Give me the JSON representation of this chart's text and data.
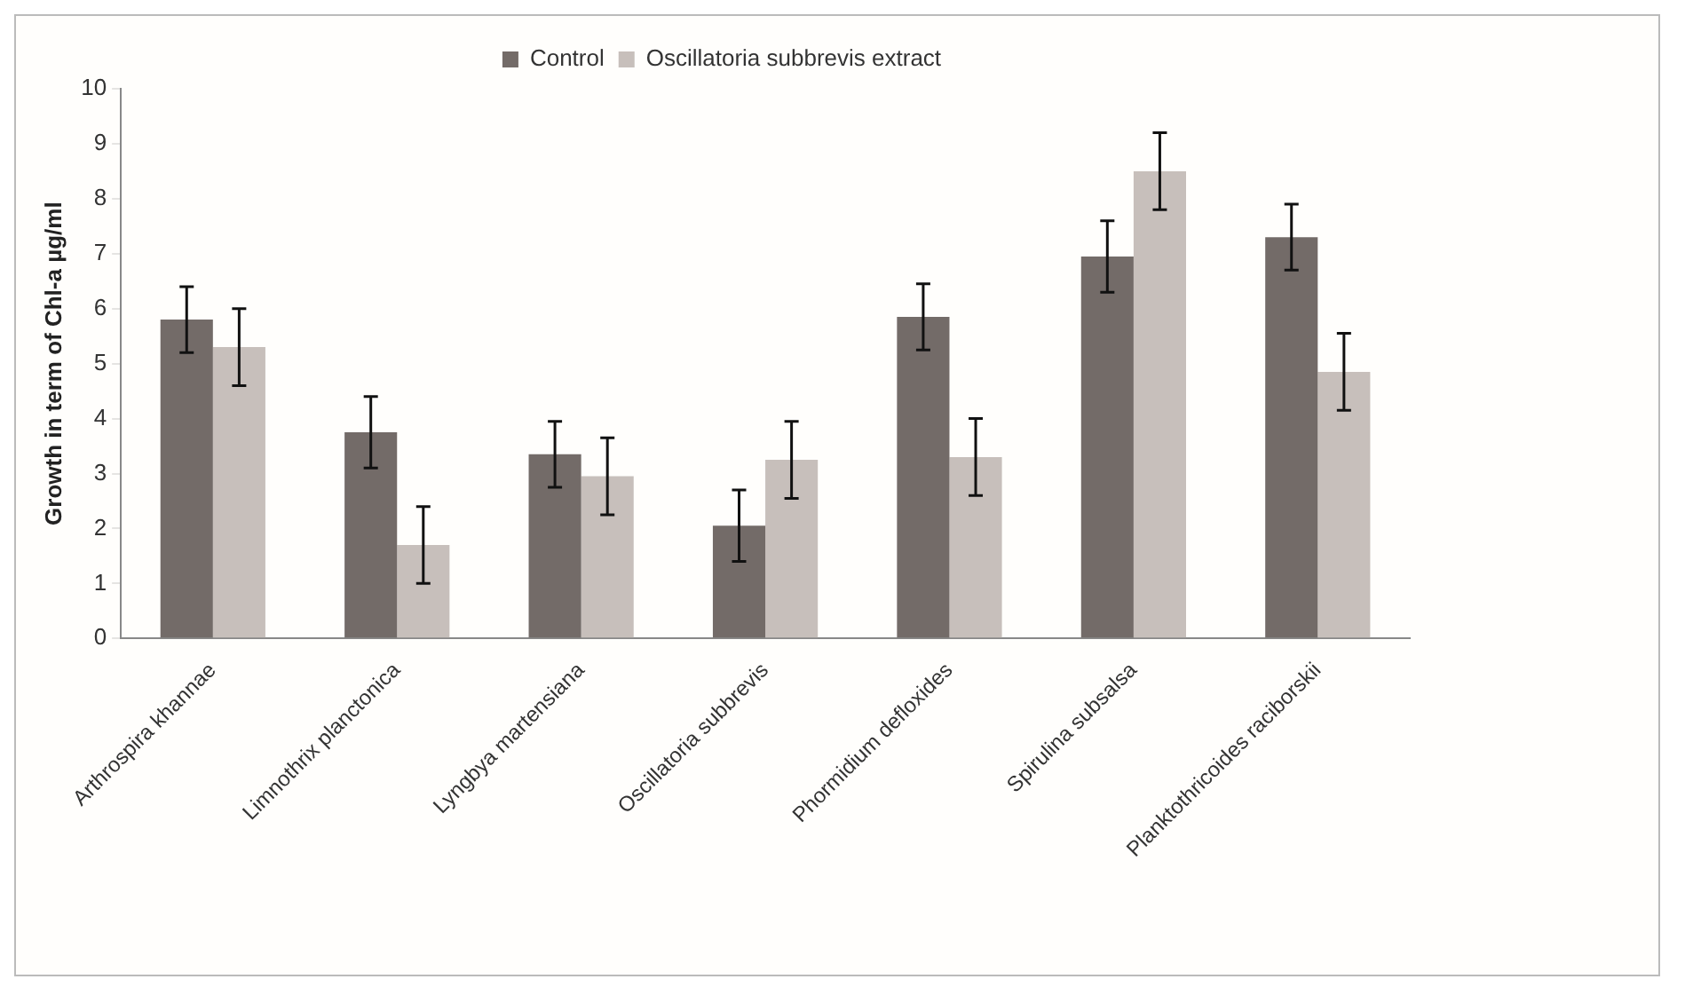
{
  "chart_data": {
    "type": "bar",
    "ylabel": "Growth in term of Chl-a µg/ml",
    "categories": [
      "Arthrospira khannae",
      "Limnothrix planctonica",
      "Lyngbya martensiana",
      "Oscillatoria subbrevis",
      "Phormidium defloxides",
      "Spirulina subsalsa",
      "Planktothricoides raciborskii"
    ],
    "series": [
      {
        "name": "Control",
        "color": "#736b68",
        "values": [
          5.8,
          3.75,
          3.35,
          2.05,
          5.85,
          6.95,
          7.3
        ],
        "errors": [
          0.6,
          0.65,
          0.6,
          0.65,
          0.6,
          0.65,
          0.6
        ]
      },
      {
        "name": "Oscillatoria subbrevis extract",
        "color": "#c7bfbb",
        "values": [
          5.3,
          1.7,
          2.95,
          3.25,
          3.3,
          8.5,
          4.85
        ],
        "errors": [
          0.7,
          0.7,
          0.7,
          0.7,
          0.7,
          0.7,
          0.7
        ]
      }
    ],
    "ylim": [
      0,
      10
    ],
    "yticks": [
      0,
      1,
      2,
      3,
      4,
      5,
      6,
      7,
      8,
      9,
      10
    ],
    "grid": false,
    "legend": "top"
  }
}
